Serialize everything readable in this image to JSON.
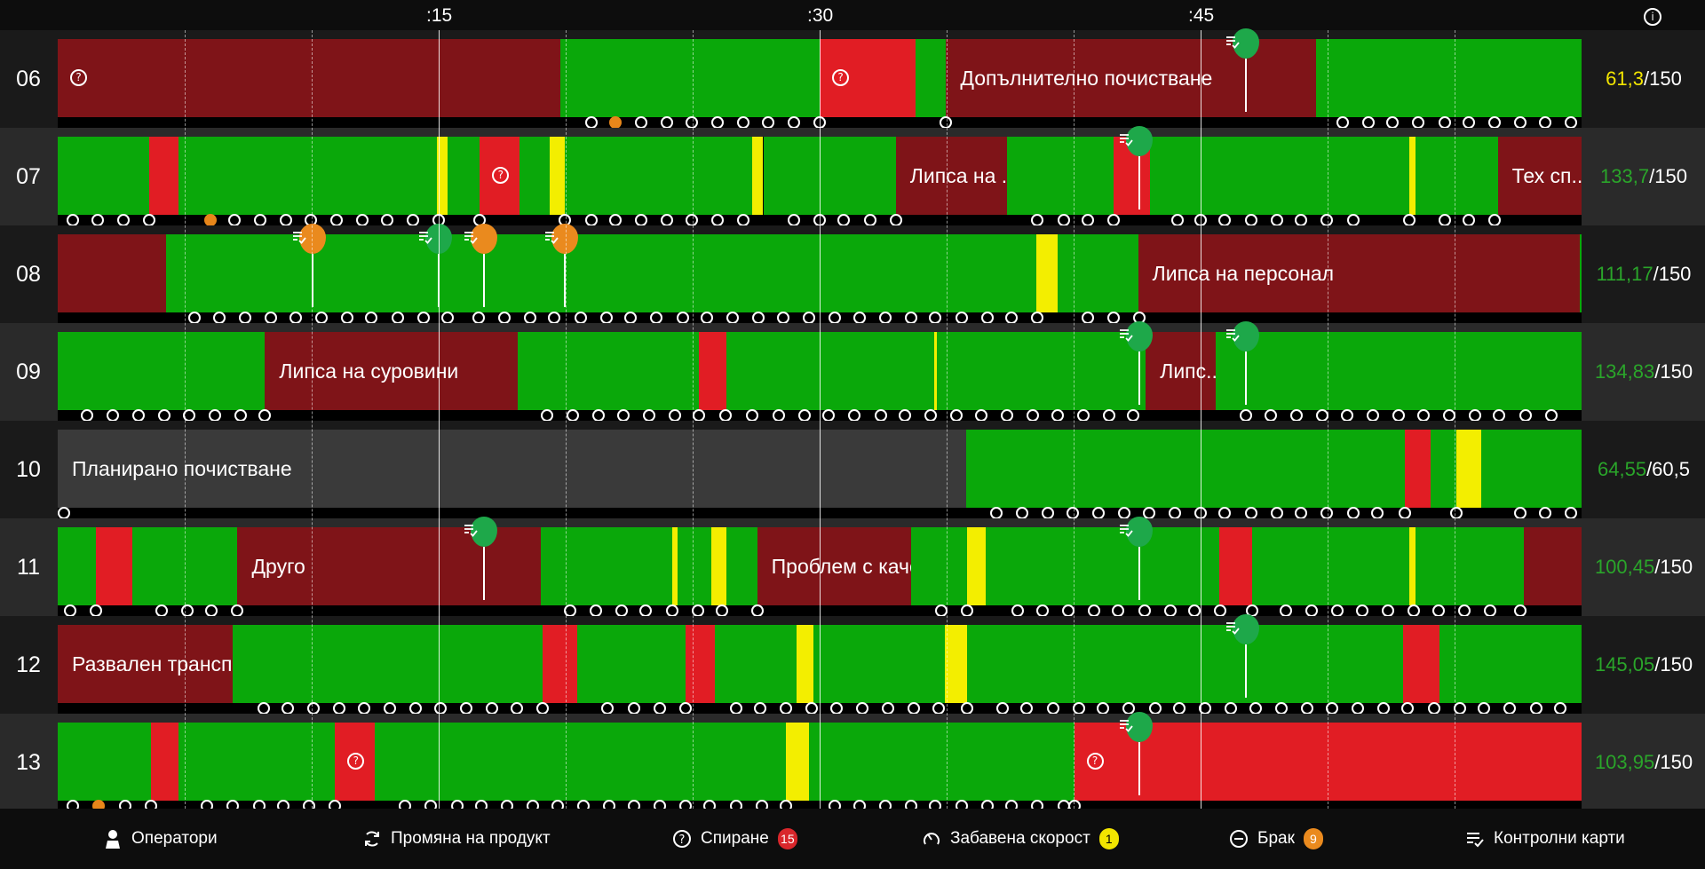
{
  "colors": {
    "running": "#0aa80a",
    "downtime_long": "#7f1418",
    "downtime": "#e11d24",
    "slow": "#f3ee00",
    "planned": "#3a3a3a",
    "pin_green": "#1ea84a",
    "pin_orange": "#ea8a1e",
    "value_yellow": "#f2e500",
    "value_green": "#2aa52a"
  },
  "header": {
    "ticks": [
      ":15",
      ":30",
      ":45"
    ],
    "info_icon": "info-icon"
  },
  "rows": [
    {
      "label": "06",
      "value_current": "61,3",
      "value_total": "/150",
      "value_color": "yellow",
      "segments": [
        {
          "from": 0,
          "to": 0.33,
          "state": "downtime_long",
          "icon": "question"
        },
        {
          "from": 0.33,
          "to": 0.5,
          "state": "running"
        },
        {
          "from": 0.5,
          "to": 0.563,
          "state": "downtime",
          "icon": "question"
        },
        {
          "from": 0.563,
          "to": 0.583,
          "state": "running"
        },
        {
          "from": 0.583,
          "to": 0.826,
          "state": "downtime_long",
          "text": "Допълнително почистване"
        },
        {
          "from": 0.826,
          "to": 1,
          "state": "running"
        }
      ],
      "dots": [
        0.35,
        0.366,
        0.383,
        0.4,
        0.416,
        0.433,
        0.45,
        0.466,
        0.483,
        0.5,
        0.583,
        0.843,
        0.86,
        0.876,
        0.893,
        0.91,
        0.926,
        0.943,
        0.96,
        0.976,
        0.993
      ],
      "orange_dots": [
        0.366
      ],
      "pins": [
        {
          "at": 0.78,
          "color": "green"
        }
      ]
    },
    {
      "label": "07",
      "value_current": "133,7",
      "value_total": "/150",
      "value_color": "green",
      "segments": [
        {
          "from": 0,
          "to": 0.06,
          "state": "running"
        },
        {
          "from": 0.06,
          "to": 0.079,
          "state": "downtime"
        },
        {
          "from": 0.079,
          "to": 0.249,
          "state": "running"
        },
        {
          "from": 0.249,
          "to": 0.256,
          "state": "slow"
        },
        {
          "from": 0.256,
          "to": 0.277,
          "state": "running"
        },
        {
          "from": 0.277,
          "to": 0.303,
          "state": "downtime",
          "icon": "question"
        },
        {
          "from": 0.303,
          "to": 0.323,
          "state": "running"
        },
        {
          "from": 0.323,
          "to": 0.333,
          "state": "slow"
        },
        {
          "from": 0.333,
          "to": 0.456,
          "state": "running"
        },
        {
          "from": 0.456,
          "to": 0.463,
          "state": "slow"
        },
        {
          "from": 0.463,
          "to": 0.55,
          "state": "running"
        },
        {
          "from": 0.55,
          "to": 0.623,
          "state": "downtime_long",
          "text": "Липса на ..."
        },
        {
          "from": 0.623,
          "to": 0.693,
          "state": "running"
        },
        {
          "from": 0.693,
          "to": 0.717,
          "state": "downtime"
        },
        {
          "from": 0.717,
          "to": 0.887,
          "state": "running"
        },
        {
          "from": 0.887,
          "to": 0.891,
          "state": "slow"
        },
        {
          "from": 0.891,
          "to": 0.945,
          "state": "running"
        },
        {
          "from": 0.945,
          "to": 1,
          "state": "downtime_long",
          "text": "Тех сп..."
        }
      ],
      "dots": [
        0.01,
        0.026,
        0.043,
        0.06,
        0.1,
        0.116,
        0.133,
        0.15,
        0.166,
        0.183,
        0.2,
        0.216,
        0.233,
        0.25,
        0.277,
        0.333,
        0.35,
        0.366,
        0.383,
        0.4,
        0.416,
        0.433,
        0.45,
        0.483,
        0.5,
        0.516,
        0.533,
        0.55,
        0.643,
        0.66,
        0.676,
        0.693,
        0.735,
        0.75,
        0.766,
        0.783,
        0.8,
        0.816,
        0.833,
        0.85,
        0.887,
        0.91,
        0.926,
        0.943
      ],
      "orange_dots": [
        0.1
      ],
      "pins": [
        {
          "at": 0.71,
          "color": "green"
        }
      ]
    },
    {
      "label": "08",
      "value_current": "111,17",
      "value_total": "/150",
      "value_color": "green",
      "segments": [
        {
          "from": 0,
          "to": 0.071,
          "state": "downtime_long"
        },
        {
          "from": 0.071,
          "to": 0.642,
          "state": "running"
        },
        {
          "from": 0.642,
          "to": 0.656,
          "state": "slow"
        },
        {
          "from": 0.656,
          "to": 0.709,
          "state": "running"
        },
        {
          "from": 0.709,
          "to": 0.999,
          "state": "downtime_long",
          "text": "Липса на персонал"
        },
        {
          "from": 0.999,
          "to": 1,
          "state": "running"
        }
      ],
      "dots": [
        0.09,
        0.106,
        0.123,
        0.14,
        0.156,
        0.173,
        0.19,
        0.206,
        0.223,
        0.24,
        0.256,
        0.276,
        0.293,
        0.31,
        0.326,
        0.343,
        0.36,
        0.376,
        0.393,
        0.41,
        0.426,
        0.443,
        0.46,
        0.476,
        0.493,
        0.51,
        0.526,
        0.543,
        0.56,
        0.576,
        0.593,
        0.61,
        0.626,
        0.643,
        0.676,
        0.693,
        0.71
      ],
      "orange_dots": [],
      "pins": [
        {
          "at": 0.167,
          "color": "orange"
        },
        {
          "at": 0.25,
          "color": "green"
        },
        {
          "at": 0.28,
          "color": "orange"
        },
        {
          "at": 0.333,
          "color": "orange"
        }
      ]
    },
    {
      "label": "09",
      "value_current": "134,83",
      "value_total": "/150",
      "value_color": "green",
      "segments": [
        {
          "from": 0,
          "to": 0.136,
          "state": "running"
        },
        {
          "from": 0.136,
          "to": 0.302,
          "state": "downtime_long",
          "text": "Липса на суровини"
        },
        {
          "from": 0.302,
          "to": 0.421,
          "state": "running"
        },
        {
          "from": 0.421,
          "to": 0.439,
          "state": "downtime"
        },
        {
          "from": 0.439,
          "to": 0.575,
          "state": "running"
        },
        {
          "from": 0.575,
          "to": 0.577,
          "state": "slow"
        },
        {
          "from": 0.577,
          "to": 0.714,
          "state": "running"
        },
        {
          "from": 0.714,
          "to": 0.76,
          "state": "downtime_long",
          "text": "Липс..."
        },
        {
          "from": 0.76,
          "to": 1,
          "state": "running"
        }
      ],
      "dots": [
        0.019,
        0.036,
        0.053,
        0.07,
        0.086,
        0.103,
        0.12,
        0.136,
        0.321,
        0.338,
        0.355,
        0.371,
        0.388,
        0.405,
        0.421,
        0.438,
        0.456,
        0.473,
        0.49,
        0.506,
        0.523,
        0.54,
        0.556,
        0.573,
        0.59,
        0.606,
        0.623,
        0.64,
        0.656,
        0.673,
        0.69,
        0.706,
        0.78,
        0.796,
        0.813,
        0.83,
        0.846,
        0.863,
        0.88,
        0.896,
        0.913,
        0.93,
        0.946,
        0.963,
        0.98
      ],
      "orange_dots": [],
      "pins": [
        {
          "at": 0.71,
          "color": "green"
        },
        {
          "at": 0.78,
          "color": "green"
        }
      ]
    },
    {
      "label": "10",
      "value_current": "64,55",
      "value_total": "/60,5",
      "value_color": "green",
      "segments": [
        {
          "from": 0,
          "to": 0.596,
          "state": "planned",
          "text": "Планирано почистване"
        },
        {
          "from": 0.596,
          "to": 0.884,
          "state": "running"
        },
        {
          "from": 0.884,
          "to": 0.901,
          "state": "downtime"
        },
        {
          "from": 0.901,
          "to": 0.918,
          "state": "running"
        },
        {
          "from": 0.918,
          "to": 0.934,
          "state": "slow"
        },
        {
          "from": 0.934,
          "to": 1,
          "state": "running"
        }
      ],
      "dots": [
        0,
        0.616,
        0.633,
        0.65,
        0.666,
        0.683,
        0.7,
        0.716,
        0.733,
        0.75,
        0.766,
        0.783,
        0.8,
        0.816,
        0.833,
        0.85,
        0.866,
        0.884,
        0.918,
        0.96,
        0.976,
        0.993
      ],
      "orange_dots": [],
      "pins": []
    },
    {
      "label": "11",
      "value_current": "100,45",
      "value_total": "/150",
      "value_color": "green",
      "segments": [
        {
          "from": 0,
          "to": 0.025,
          "state": "running"
        },
        {
          "from": 0.025,
          "to": 0.049,
          "state": "downtime"
        },
        {
          "from": 0.049,
          "to": 0.118,
          "state": "running"
        },
        {
          "from": 0.118,
          "to": 0.317,
          "state": "downtime_long",
          "text": "Друго"
        },
        {
          "from": 0.317,
          "to": 0.403,
          "state": "running"
        },
        {
          "from": 0.403,
          "to": 0.407,
          "state": "slow"
        },
        {
          "from": 0.407,
          "to": 0.429,
          "state": "running"
        },
        {
          "from": 0.429,
          "to": 0.439,
          "state": "slow"
        },
        {
          "from": 0.439,
          "to": 0.459,
          "state": "running"
        },
        {
          "from": 0.459,
          "to": 0.56,
          "state": "downtime_long",
          "text": "Проблем с каче..."
        },
        {
          "from": 0.56,
          "to": 0.597,
          "state": "running"
        },
        {
          "from": 0.597,
          "to": 0.609,
          "state": "slow"
        },
        {
          "from": 0.609,
          "to": 0.762,
          "state": "running"
        },
        {
          "from": 0.762,
          "to": 0.784,
          "state": "downtime"
        },
        {
          "from": 0.784,
          "to": 0.887,
          "state": "running"
        },
        {
          "from": 0.887,
          "to": 0.891,
          "state": "slow"
        },
        {
          "from": 0.891,
          "to": 0.962,
          "state": "running"
        },
        {
          "from": 0.962,
          "to": 1,
          "state": "downtime_long"
        }
      ],
      "dots": [
        0.008,
        0.025,
        0.068,
        0.085,
        0.101,
        0.118,
        0.336,
        0.353,
        0.37,
        0.386,
        0.403,
        0.42,
        0.436,
        0.459,
        0.58,
        0.597,
        0.63,
        0.646,
        0.663,
        0.68,
        0.696,
        0.713,
        0.73,
        0.746,
        0.763,
        0.784,
        0.806,
        0.823,
        0.84,
        0.856,
        0.873,
        0.89,
        0.906,
        0.923,
        0.94,
        0.96
      ],
      "orange_dots": [],
      "pins": [
        {
          "at": 0.28,
          "color": "green"
        },
        {
          "at": 0.71,
          "color": "green"
        }
      ]
    },
    {
      "label": "12",
      "value_current": "145,05",
      "value_total": "/150",
      "value_color": "green",
      "segments": [
        {
          "from": 0,
          "to": 0.115,
          "state": "downtime_long",
          "text": "Развален транспо..."
        },
        {
          "from": 0.115,
          "to": 0.318,
          "state": "running"
        },
        {
          "from": 0.318,
          "to": 0.341,
          "state": "downtime"
        },
        {
          "from": 0.341,
          "to": 0.412,
          "state": "running"
        },
        {
          "from": 0.412,
          "to": 0.431,
          "state": "downtime"
        },
        {
          "from": 0.431,
          "to": 0.485,
          "state": "running"
        },
        {
          "from": 0.485,
          "to": 0.496,
          "state": "slow"
        },
        {
          "from": 0.496,
          "to": 0.582,
          "state": "running"
        },
        {
          "from": 0.582,
          "to": 0.597,
          "state": "slow"
        },
        {
          "from": 0.597,
          "to": 0.883,
          "state": "running"
        },
        {
          "from": 0.883,
          "to": 0.907,
          "state": "downtime"
        },
        {
          "from": 0.907,
          "to": 1,
          "state": "running"
        }
      ],
      "dots": [
        0.135,
        0.151,
        0.168,
        0.185,
        0.201,
        0.218,
        0.235,
        0.251,
        0.268,
        0.285,
        0.301,
        0.318,
        0.361,
        0.378,
        0.395,
        0.412,
        0.445,
        0.461,
        0.478,
        0.495,
        0.511,
        0.528,
        0.545,
        0.562,
        0.578,
        0.597,
        0.62,
        0.636,
        0.653,
        0.67,
        0.686,
        0.703,
        0.72,
        0.736,
        0.753,
        0.77,
        0.786,
        0.803,
        0.82,
        0.836,
        0.853,
        0.87,
        0.886,
        0.903,
        0.92,
        0.936,
        0.953,
        0.97,
        0.986
      ],
      "orange_dots": [],
      "pins": [
        {
          "at": 0.78,
          "color": "green"
        }
      ]
    },
    {
      "label": "13",
      "value_current": "103,95",
      "value_total": "/150",
      "value_color": "green",
      "segments": [
        {
          "from": 0,
          "to": 0.061,
          "state": "running"
        },
        {
          "from": 0.061,
          "to": 0.079,
          "state": "downtime"
        },
        {
          "from": 0.079,
          "to": 0.182,
          "state": "running"
        },
        {
          "from": 0.182,
          "to": 0.208,
          "state": "downtime",
          "icon": "question"
        },
        {
          "from": 0.208,
          "to": 0.478,
          "state": "running"
        },
        {
          "from": 0.478,
          "to": 0.493,
          "state": "slow"
        },
        {
          "from": 0.493,
          "to": 0.667,
          "state": "running"
        },
        {
          "from": 0.667,
          "to": 1,
          "state": "downtime",
          "icon": "question"
        }
      ],
      "dots": [
        0.01,
        0.027,
        0.044,
        0.061,
        0.098,
        0.115,
        0.132,
        0.148,
        0.165,
        0.182,
        0.228,
        0.245,
        0.262,
        0.278,
        0.295,
        0.312,
        0.328,
        0.345,
        0.362,
        0.378,
        0.395,
        0.412,
        0.428,
        0.445,
        0.462,
        0.478,
        0.51,
        0.526,
        0.543,
        0.56,
        0.576,
        0.593,
        0.61,
        0.626,
        0.643,
        0.66,
        0.667
      ],
      "orange_dots": [
        0.027
      ],
      "pins": [
        {
          "at": 0.71,
          "color": "green"
        }
      ]
    }
  ],
  "footer": {
    "operators": {
      "label": "Оператори",
      "icon": "operator-icon"
    },
    "product_change": {
      "label": "Промяна на продукт",
      "icon": "refresh-icon"
    },
    "stops": {
      "label": "Спиране",
      "icon": "question-icon",
      "badge": "15",
      "badge_color": "#d9262b"
    },
    "slow_speed": {
      "label": "Забавена скорост",
      "icon": "gauge-icon",
      "badge": "1",
      "badge_color": "#f2e500"
    },
    "scrap": {
      "label": "Брак",
      "icon": "minus-circle-icon",
      "badge": "9",
      "badge_color": "#ea8a1e"
    },
    "control_cards": {
      "label": "Контролни карти",
      "icon": "checklist-icon"
    }
  }
}
